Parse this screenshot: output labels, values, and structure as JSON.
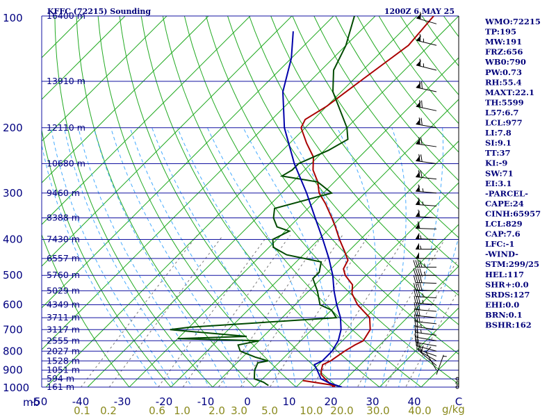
{
  "header": {
    "title_left": "KFFC (72215) Sounding",
    "title_right": "1200Z  6 MAY 25"
  },
  "chart_data": {
    "type": "skew-t",
    "pressure_unit_label": "mb",
    "mixing_ratio_unit_label": "g/kg",
    "pressure_ticks": [
      100,
      200,
      300,
      400,
      500,
      600,
      700,
      800,
      900,
      1000
    ],
    "pressure_range": [
      100,
      1000
    ],
    "temperature_ticks": [
      "-50",
      "-40",
      "-30",
      "-20",
      "-10",
      "0",
      "10",
      "20",
      "30",
      "40",
      "C"
    ],
    "mixing_ratio_labels": [
      "0.1",
      "0.2",
      "0.6",
      "1.0",
      "2.0",
      "3.0",
      "5.0",
      "10.0",
      "20.0",
      "30.0",
      "40.0"
    ],
    "height_labels": [
      {
        "p": 100,
        "text": "16400 m"
      },
      {
        "p": 150,
        "text": "13910 m"
      },
      {
        "p": 200,
        "text": "12110 m"
      },
      {
        "p": 250,
        "text": "10680 m"
      },
      {
        "p": 300,
        "text": "9460 m"
      },
      {
        "p": 350,
        "text": "8388 m"
      },
      {
        "p": 400,
        "text": "7430 m"
      },
      {
        "p": 450,
        "text": "6557 m"
      },
      {
        "p": 500,
        "text": "5760 m"
      },
      {
        "p": 550,
        "text": "5029 m"
      },
      {
        "p": 600,
        "text": "4349 m"
      },
      {
        "p": 650,
        "text": "3711 m"
      },
      {
        "p": 700,
        "text": "3117 m"
      },
      {
        "p": 750,
        "text": "2555 m"
      },
      {
        "p": 800,
        "text": "2027 m"
      },
      {
        "p": 850,
        "text": "1528 m"
      },
      {
        "p": 900,
        "text": "1051 m"
      },
      {
        "p": 950,
        "text": "594 m"
      },
      {
        "p": 1000,
        "text": "161 m"
      }
    ],
    "series": [
      {
        "name": "",
        "role": "temperature",
        "color": "#aa0000",
        "points": [
          [
            960,
            10
          ],
          [
            990,
            19
          ],
          [
            1000,
            19
          ],
          [
            975,
            17
          ],
          [
            950,
            15
          ],
          [
            925,
            13
          ],
          [
            900,
            12
          ],
          [
            870,
            11
          ],
          [
            850,
            12
          ],
          [
            800,
            13
          ],
          [
            770,
            14
          ],
          [
            750,
            15
          ],
          [
            700,
            14
          ],
          [
            650,
            11
          ],
          [
            600,
            5
          ],
          [
            560,
            1
          ],
          [
            530,
            -1
          ],
          [
            500,
            -5
          ],
          [
            480,
            -7
          ],
          [
            455,
            -8
          ],
          [
            430,
            -11
          ],
          [
            400,
            -15
          ],
          [
            370,
            -19
          ],
          [
            350,
            -22
          ],
          [
            320,
            -27
          ],
          [
            300,
            -31
          ],
          [
            280,
            -34
          ],
          [
            260,
            -38
          ],
          [
            240,
            -41
          ],
          [
            220,
            -46
          ],
          [
            200,
            -51
          ],
          [
            190,
            -52
          ],
          [
            175,
            -50
          ],
          [
            150,
            -48
          ],
          [
            120,
            -45
          ],
          [
            100,
            -46
          ]
        ]
      },
      {
        "name": "",
        "role": "dewpoint",
        "color": "#004a00",
        "points": [
          [
            990,
            3
          ],
          [
            970,
            1
          ],
          [
            950,
            -2
          ],
          [
            900,
            -4
          ],
          [
            860,
            -5
          ],
          [
            850,
            -3
          ],
          [
            830,
            -7
          ],
          [
            800,
            -12
          ],
          [
            770,
            -14
          ],
          [
            750,
            -10
          ],
          [
            740,
            -30
          ],
          [
            730,
            -14
          ],
          [
            700,
            -34
          ],
          [
            690,
            -30
          ],
          [
            650,
            3
          ],
          [
            620,
            0
          ],
          [
            600,
            -4
          ],
          [
            550,
            -8
          ],
          [
            510,
            -12
          ],
          [
            490,
            -12
          ],
          [
            460,
            -14
          ],
          [
            440,
            -24
          ],
          [
            420,
            -29
          ],
          [
            400,
            -31
          ],
          [
            380,
            -29
          ],
          [
            370,
            -33
          ],
          [
            350,
            -36
          ],
          [
            330,
            -38
          ],
          [
            300,
            -28
          ],
          [
            280,
            -34
          ],
          [
            270,
            -44
          ],
          [
            260,
            -43
          ],
          [
            250,
            -43
          ],
          [
            230,
            -39
          ],
          [
            215,
            -37
          ],
          [
            200,
            -40
          ],
          [
            160,
            -52
          ],
          [
            140,
            -57
          ],
          [
            120,
            -60
          ],
          [
            100,
            -65
          ]
        ]
      },
      {
        "name": "",
        "role": "parcel",
        "color": "#0000aa",
        "points": [
          [
            1000,
            21
          ],
          [
            975,
            17
          ],
          [
            950,
            14
          ],
          [
            900,
            11
          ],
          [
            870,
            9
          ],
          [
            850,
            10
          ],
          [
            800,
            10
          ],
          [
            750,
            9
          ],
          [
            700,
            7
          ],
          [
            650,
            4
          ],
          [
            600,
            0
          ],
          [
            550,
            -4
          ],
          [
            500,
            -8
          ],
          [
            450,
            -13
          ],
          [
            400,
            -19
          ],
          [
            350,
            -26
          ],
          [
            300,
            -34
          ],
          [
            250,
            -44
          ],
          [
            200,
            -55
          ],
          [
            160,
            -64
          ],
          [
            130,
            -70
          ],
          [
            110,
            -76
          ]
        ]
      }
    ],
    "wind_barbs": [
      {
        "p": 1000,
        "dir": 0,
        "spd": 0
      },
      {
        "p": 975,
        "dir": 0,
        "spd": 0
      },
      {
        "p": 950,
        "dir": 0,
        "spd": 0
      },
      {
        "p": 925,
        "dir": 20,
        "spd": 5
      },
      {
        "p": 900,
        "dir": 330,
        "spd": 10
      },
      {
        "p": 875,
        "dir": 310,
        "spd": 10
      },
      {
        "p": 850,
        "dir": 300,
        "spd": 15
      },
      {
        "p": 825,
        "dir": 290,
        "spd": 15
      },
      {
        "p": 800,
        "dir": 285,
        "spd": 20
      },
      {
        "p": 775,
        "dir": 280,
        "spd": 20
      },
      {
        "p": 750,
        "dir": 280,
        "spd": 20
      },
      {
        "p": 725,
        "dir": 278,
        "spd": 25
      },
      {
        "p": 700,
        "dir": 278,
        "spd": 25
      },
      {
        "p": 675,
        "dir": 276,
        "spd": 30
      },
      {
        "p": 650,
        "dir": 276,
        "spd": 30
      },
      {
        "p": 625,
        "dir": 275,
        "spd": 30
      },
      {
        "p": 600,
        "dir": 275,
        "spd": 35
      },
      {
        "p": 575,
        "dir": 274,
        "spd": 35
      },
      {
        "p": 550,
        "dir": 272,
        "spd": 40
      },
      {
        "p": 525,
        "dir": 272,
        "spd": 40
      },
      {
        "p": 500,
        "dir": 270,
        "spd": 45
      },
      {
        "p": 475,
        "dir": 270,
        "spd": 45
      },
      {
        "p": 450,
        "dir": 270,
        "spd": 50
      },
      {
        "p": 425,
        "dir": 270,
        "spd": 55
      },
      {
        "p": 400,
        "dir": 272,
        "spd": 55
      },
      {
        "p": 375,
        "dir": 272,
        "spd": 60
      },
      {
        "p": 350,
        "dir": 274,
        "spd": 60
      },
      {
        "p": 325,
        "dir": 274,
        "spd": 65
      },
      {
        "p": 300,
        "dir": 275,
        "spd": 65
      },
      {
        "p": 275,
        "dir": 276,
        "spd": 70
      },
      {
        "p": 250,
        "dir": 278,
        "spd": 70
      },
      {
        "p": 225,
        "dir": 278,
        "spd": 70
      },
      {
        "p": 200,
        "dir": 280,
        "spd": 70
      },
      {
        "p": 180,
        "dir": 282,
        "spd": 70
      },
      {
        "p": 160,
        "dir": 282,
        "spd": 70
      },
      {
        "p": 140,
        "dir": 284,
        "spd": 65
      },
      {
        "p": 120,
        "dir": 284,
        "spd": 65
      },
      {
        "p": 105,
        "dir": 286,
        "spd": 60
      }
    ],
    "grid": true
  },
  "indices": [
    "WMO:72215",
    "TP:195",
    "MW:191",
    "FRZ:656",
    "WB0:790",
    "PW:0.73",
    "RH:55.4",
    "MAXT:22.1",
    "TH:5599",
    "L57:6.7",
    "LCL:977",
    "LI:7.8",
    "SI:9.1",
    "TT:37",
    "KI:-9",
    "SW:71",
    "EI:3.1",
    "-PARCEL-",
    "CAPE:24",
    "CINH:65957",
    "LCL:829",
    "CAP:7.6",
    "LFC:-1",
    "-WIND-",
    "STM:299/25",
    "HEL:117",
    "SHR+:0.0",
    "SRDS:127",
    "EHI:0.0",
    "BRN:0.1",
    "BSHR:162"
  ],
  "colors": {
    "isobar": "#1010a0",
    "isotherm": "#22aa22",
    "dry_adiabat": "#22aa22",
    "moist_adiabat": "#44aaff",
    "mixing_ratio": "#777777",
    "text": "#000080",
    "mixing_ratio_text": "#8a8a1e"
  }
}
